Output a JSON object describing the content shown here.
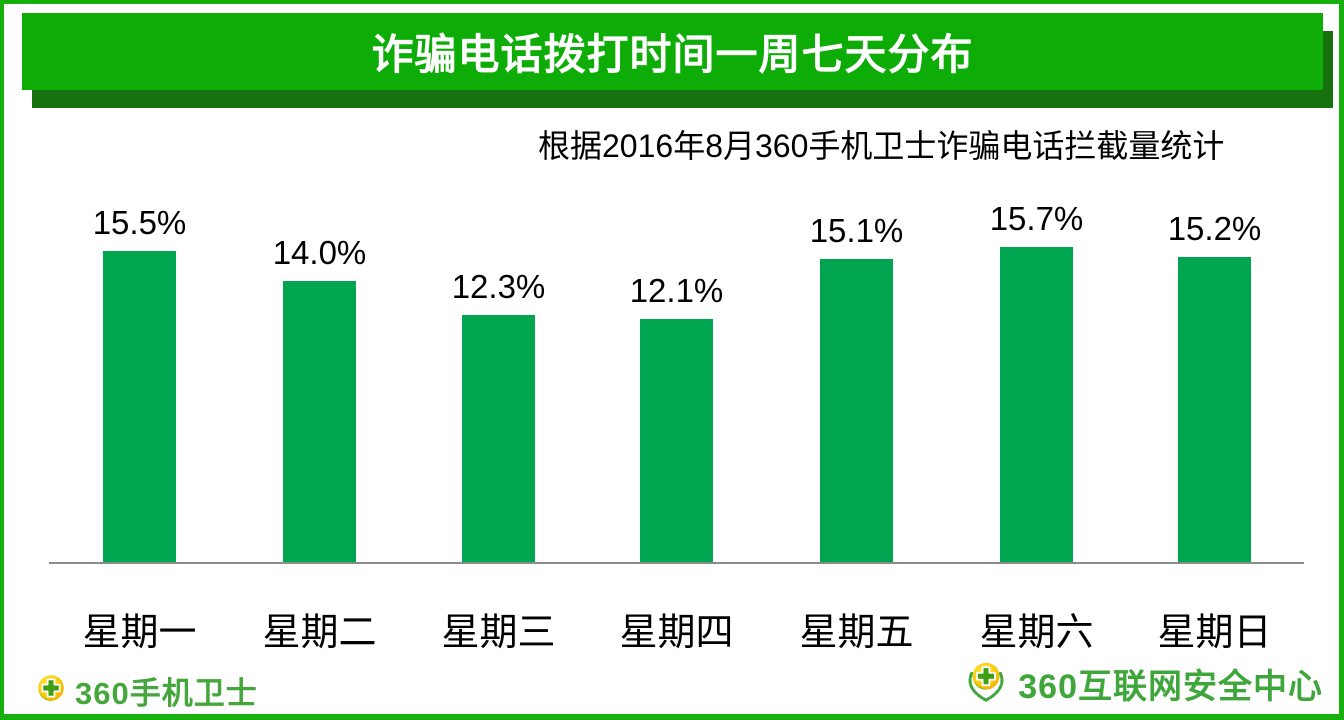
{
  "header": {
    "title": "诈骗电话拨打时间一周七天分布",
    "source_note": "根据2016年8月360手机卫士诈骗电话拦截量统计"
  },
  "chart_data": {
    "type": "bar",
    "title": "诈骗电话拨打时间一周七天分布",
    "categories": [
      "星期一",
      "星期二",
      "星期三",
      "星期四",
      "星期五",
      "星期六",
      "星期日"
    ],
    "values": [
      15.5,
      14.0,
      12.3,
      12.1,
      15.1,
      15.7,
      15.2
    ],
    "display_values": [
      "15.5%",
      "14.0%",
      "12.3%",
      "12.1%",
      "15.1%",
      "15.7%",
      "15.2%"
    ],
    "unit": "%",
    "xlabel": "",
    "ylabel": "",
    "ylim": [
      0,
      17.5
    ],
    "grid": false,
    "legend": false,
    "value_labels_position": "above-bars",
    "bar_color": "#00A550",
    "axis_color": "#8C8C8C"
  },
  "footer": {
    "left_logo": {
      "icon": "360-ball-cross-icon",
      "text": "360手机卫士"
    },
    "right_logo": {
      "icon": "360-laurel-emblem-icon",
      "text": "360互联网安全中心"
    }
  },
  "theme": {
    "banner_green": "#0EAC07",
    "banner_shadow_green": "#17710E",
    "frame_border_green": "#17B00C",
    "bar_green": "#00A550",
    "axis_gray": "#8C8C8C",
    "logo_green_left": "#45A73B",
    "logo_green_right": "#3FA63C",
    "title_text": "#FFFFFF",
    "body_text": "#000000"
  }
}
